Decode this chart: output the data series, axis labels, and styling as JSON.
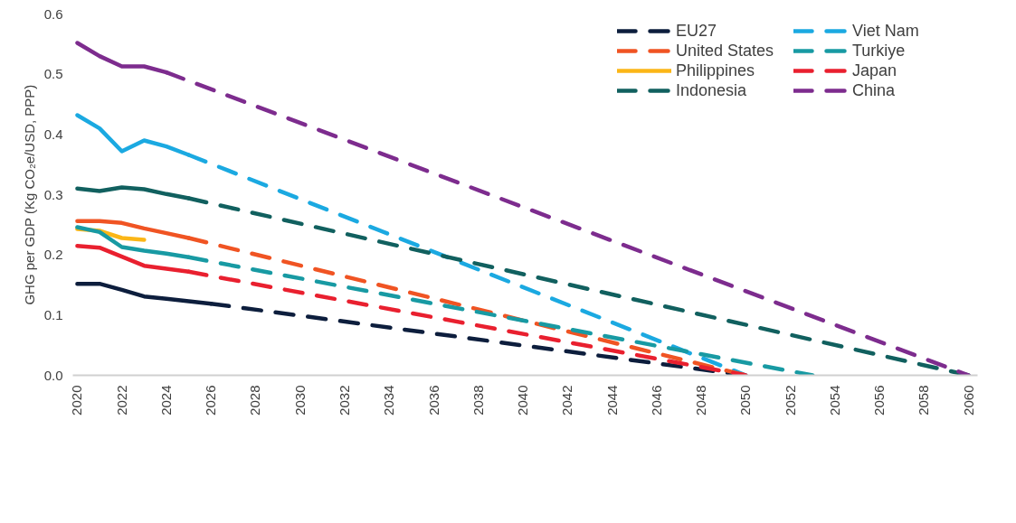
{
  "chart_data": {
    "type": "line",
    "ylabel": "GHG per GDP (Kg CO₂e/USD, PPP)",
    "xlim": [
      2019.8,
      2060.4
    ],
    "ylim": [
      0,
      0.6
    ],
    "xticks": [
      2020,
      2022,
      2024,
      2026,
      2028,
      2030,
      2032,
      2034,
      2036,
      2038,
      2040,
      2042,
      2044,
      2046,
      2048,
      2050,
      2052,
      2054,
      2056,
      2058,
      2060
    ],
    "yticks": [
      {
        "value": 0,
        "label": "0.0"
      },
      0.1,
      0.2,
      0.3,
      0.4,
      0.5,
      0.6
    ],
    "grid": false,
    "legend": "top right",
    "marker": "none",
    "series": [
      {
        "name": "EU27",
        "color": "#0d1e3d",
        "line_style": "dashed",
        "x": [
          2026,
          2050
        ],
        "values": [
          0.119,
          0
        ]
      },
      {
        "name": "Viet Nam",
        "color": "#1ba9e1",
        "line_style": "dashed",
        "x": [
          2025,
          2050
        ],
        "values": [
          0.366,
          0
        ]
      },
      {
        "name": "United States",
        "color": "#f05423",
        "line_style": "dashed",
        "x": [
          2025,
          2050
        ],
        "values": [
          0.228,
          0
        ]
      },
      {
        "name": "Turkiye",
        "color": "#189aa3",
        "line_style": "dashed",
        "x": [
          2025,
          2053
        ],
        "values": [
          0.196,
          0
        ]
      },
      {
        "name": "Philippines",
        "color": "#fbb617",
        "line_style": "solid",
        "x": [
          2020,
          2021,
          2022,
          2023
        ],
        "values": [
          0.243,
          0.24,
          0.228,
          0.225
        ]
      },
      {
        "name": "Japan",
        "color": "#e9202f",
        "line_style": "dashed",
        "x": [
          2025,
          2050
        ],
        "values": [
          0.172,
          0
        ]
      },
      {
        "name": "Indonesia",
        "color": "#11605f",
        "line_style": "dashed",
        "x": [
          2025,
          2060
        ],
        "values": [
          0.294,
          0
        ]
      },
      {
        "name": "China",
        "color": "#7d2c8e",
        "line_style": "dashed",
        "x": [
          2024,
          2060
        ],
        "values": [
          0.503,
          0
        ]
      },
      {
        "color": "#0d1e3d",
        "line_style": "solid",
        "x": [
          2020,
          2021,
          2022,
          2023,
          2024,
          2025,
          2026
        ],
        "values": [
          0.152,
          0.152,
          0.142,
          0.131,
          0.127,
          0.123,
          0.119
        ]
      },
      {
        "color": "#1ba9e1",
        "line_style": "solid",
        "x": [
          2020,
          2021,
          2022,
          2023,
          2024,
          2025
        ],
        "values": [
          0.432,
          0.41,
          0.372,
          0.39,
          0.38,
          0.366
        ]
      },
      {
        "color": "#f05423",
        "line_style": "solid",
        "x": [
          2020,
          2021,
          2022,
          2023,
          2024,
          2025
        ],
        "values": [
          0.256,
          0.256,
          0.253,
          0.244,
          0.236,
          0.228
        ]
      },
      {
        "color": "#189aa3",
        "line_style": "solid",
        "x": [
          2020,
          2021,
          2022,
          2023,
          2024,
          2025
        ],
        "values": [
          0.246,
          0.238,
          0.213,
          0.207,
          0.202,
          0.196
        ]
      },
      {
        "color": "#e9202f",
        "line_style": "solid",
        "x": [
          2020,
          2021,
          2022,
          2023,
          2024,
          2025
        ],
        "values": [
          0.215,
          0.212,
          0.197,
          0.182,
          0.177,
          0.172
        ]
      },
      {
        "color": "#11605f",
        "line_style": "solid",
        "x": [
          2020,
          2021,
          2022,
          2023,
          2024,
          2025
        ],
        "values": [
          0.31,
          0.306,
          0.312,
          0.309,
          0.301,
          0.294
        ]
      },
      {
        "color": "#7d2c8e",
        "line_style": "solid",
        "x": [
          2020,
          2021,
          2022,
          2023,
          2024
        ],
        "values": [
          0.552,
          0.53,
          0.513,
          0.513,
          0.503
        ]
      }
    ]
  }
}
